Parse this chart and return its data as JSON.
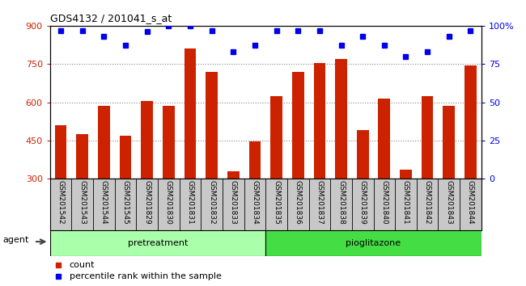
{
  "title": "GDS4132 / 201041_s_at",
  "samples": [
    "GSM201542",
    "GSM201543",
    "GSM201544",
    "GSM201545",
    "GSM201829",
    "GSM201830",
    "GSM201831",
    "GSM201832",
    "GSM201833",
    "GSM201834",
    "GSM201835",
    "GSM201836",
    "GSM201837",
    "GSM201838",
    "GSM201839",
    "GSM201840",
    "GSM201841",
    "GSM201842",
    "GSM201843",
    "GSM201844"
  ],
  "counts": [
    510,
    475,
    585,
    470,
    605,
    585,
    810,
    720,
    330,
    445,
    625,
    720,
    755,
    770,
    490,
    615,
    335,
    625,
    585,
    745
  ],
  "percentiles": [
    97,
    97,
    93,
    87,
    96,
    100,
    100,
    97,
    83,
    87,
    97,
    97,
    97,
    87,
    93,
    87,
    80,
    83,
    93,
    97
  ],
  "groups": [
    {
      "name": "pretreatment",
      "start": 0,
      "end": 10,
      "color": "#AAFFAA"
    },
    {
      "name": "pioglitazone",
      "start": 10,
      "end": 20,
      "color": "#44DD44"
    }
  ],
  "ylim_left": [
    300,
    900
  ],
  "ylim_right": [
    0,
    100
  ],
  "yticks_left": [
    300,
    450,
    600,
    750,
    900
  ],
  "yticks_right": [
    0,
    25,
    50,
    75,
    100
  ],
  "bar_color": "#CC2200",
  "dot_color": "#0000EE",
  "bar_bottom": 300,
  "background_plot": "#FFFFFF",
  "background_xticklabel": "#C8C8C8",
  "right_axis_label_color": "#0000EE",
  "left_axis_label_color": "#CC2200",
  "grid_color": "#888888",
  "agent_label": "agent",
  "legend_count_label": "count",
  "legend_percentile_label": "percentile rank within the sample"
}
